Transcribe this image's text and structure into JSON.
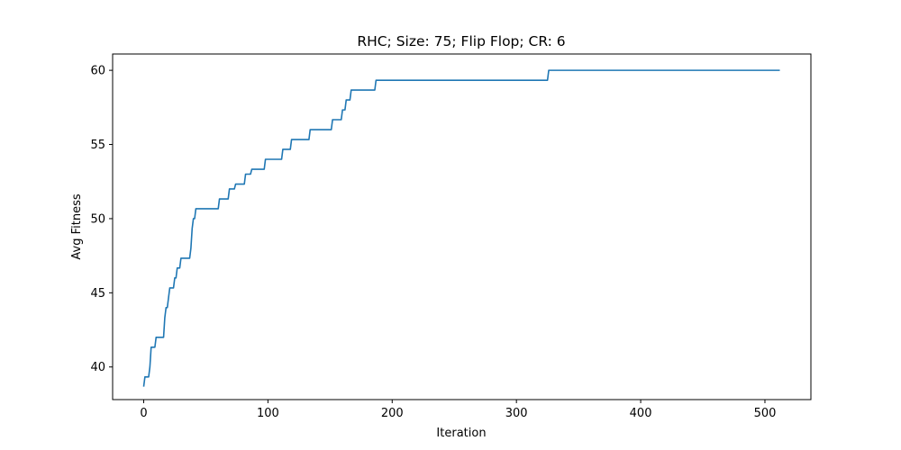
{
  "chart_data": {
    "type": "line",
    "title": "RHC; Size: 75; Flip Flop; CR: 6",
    "xlabel": "Iteration",
    "ylabel": "Avg Fitness",
    "xlim": [
      -25,
      537
    ],
    "ylim": [
      37.8,
      61.1
    ],
    "xticks": [
      0,
      100,
      200,
      300,
      400,
      500
    ],
    "yticks": [
      40,
      45,
      50,
      55,
      60
    ],
    "grid": false,
    "legend": "none",
    "line_color": "#1f77b4",
    "series": [
      {
        "values": [
          [
            0,
            38.67
          ],
          [
            1,
            39.33
          ],
          [
            4,
            39.33
          ],
          [
            5,
            40.0
          ],
          [
            6,
            41.33
          ],
          [
            9,
            41.33
          ],
          [
            10,
            42.0
          ],
          [
            16,
            42.0
          ],
          [
            17,
            43.33
          ],
          [
            18,
            44.0
          ],
          [
            19,
            44.0
          ],
          [
            20,
            44.67
          ],
          [
            21,
            45.33
          ],
          [
            24,
            45.33
          ],
          [
            25,
            46.0
          ],
          [
            26,
            46.0
          ],
          [
            27,
            46.67
          ],
          [
            29,
            46.67
          ],
          [
            30,
            47.33
          ],
          [
            37,
            47.33
          ],
          [
            38,
            48.0
          ],
          [
            39,
            49.33
          ],
          [
            40,
            50.0
          ],
          [
            41,
            50.0
          ],
          [
            42,
            50.67
          ],
          [
            60,
            50.67
          ],
          [
            61,
            51.33
          ],
          [
            68,
            51.33
          ],
          [
            69,
            52.0
          ],
          [
            73,
            52.0
          ],
          [
            74,
            52.33
          ],
          [
            81,
            52.33
          ],
          [
            82,
            53.0
          ],
          [
            86,
            53.0
          ],
          [
            87,
            53.33
          ],
          [
            97,
            53.33
          ],
          [
            98,
            54.0
          ],
          [
            111,
            54.0
          ],
          [
            112,
            54.67
          ],
          [
            118,
            54.67
          ],
          [
            119,
            55.33
          ],
          [
            133,
            55.33
          ],
          [
            134,
            56.0
          ],
          [
            151,
            56.0
          ],
          [
            152,
            56.67
          ],
          [
            159,
            56.67
          ],
          [
            160,
            57.33
          ],
          [
            162,
            57.33
          ],
          [
            163,
            58.0
          ],
          [
            166,
            58.0
          ],
          [
            167,
            58.67
          ],
          [
            186,
            58.67
          ],
          [
            187,
            59.33
          ],
          [
            325,
            59.33
          ],
          [
            326,
            60.0
          ],
          [
            512,
            60.0
          ]
        ]
      }
    ]
  }
}
